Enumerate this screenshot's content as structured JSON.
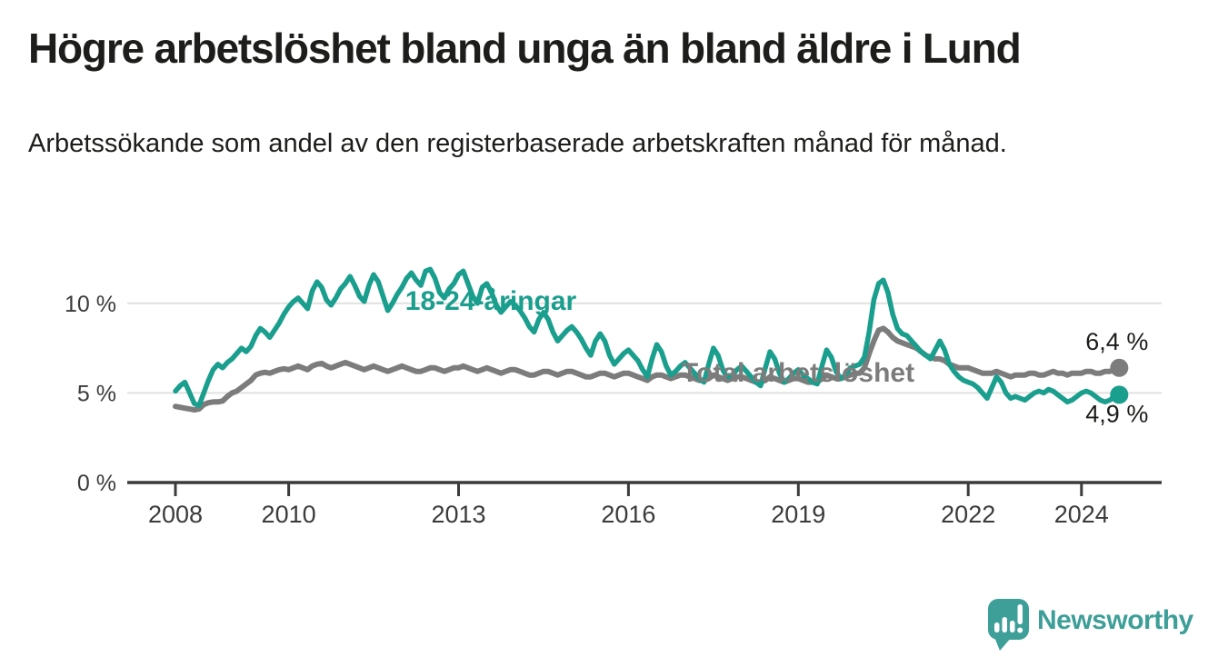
{
  "header": {
    "title": "Högre arbetslöshet bland unga än bland äldre i Lund",
    "subtitle": "Arbetssökande som andel av den registerbaserade arbetskraften månad för månad."
  },
  "chart_data": {
    "type": "line",
    "title": "Högre arbetslöshet bland unga än bland äldre i Lund",
    "subtitle": "Arbetssökande som andel av den registerbaserade arbetskraften månad för månad.",
    "x_unit": "month",
    "x_start_year": 2008,
    "x_end_year_fraction": 2024.67,
    "ylim": [
      0,
      12.5
    ],
    "grid": "horizontal",
    "legend_position": "inline-labels",
    "yticks": [
      {
        "value": 0,
        "label": "0 %"
      },
      {
        "value": 5,
        "label": "5 %"
      },
      {
        "value": 10,
        "label": "10 %"
      }
    ],
    "xticks": [
      {
        "value": 2008,
        "label": "2008"
      },
      {
        "value": 2010,
        "label": "2010"
      },
      {
        "value": 2013,
        "label": "2013"
      },
      {
        "value": 2016,
        "label": "2016"
      },
      {
        "value": 2019,
        "label": "2019"
      },
      {
        "value": 2022,
        "label": "2022"
      },
      {
        "value": 2024,
        "label": "2024"
      }
    ],
    "series": [
      {
        "name": "18-24-åringar",
        "color": "#1a9e8d",
        "end_value": 4.9,
        "end_label": "4,9 %",
        "values": [
          5.1,
          5.4,
          5.6,
          5.0,
          4.4,
          4.3,
          5.0,
          5.7,
          6.3,
          6.6,
          6.4,
          6.7,
          6.9,
          7.2,
          7.5,
          7.3,
          7.6,
          8.2,
          8.6,
          8.4,
          8.1,
          8.5,
          8.9,
          9.4,
          9.8,
          10.1,
          10.3,
          10.0,
          9.7,
          10.7,
          11.2,
          10.9,
          10.2,
          9.9,
          10.3,
          10.8,
          11.1,
          11.5,
          11.0,
          10.4,
          10.1,
          11.0,
          11.6,
          11.2,
          10.4,
          9.6,
          10.0,
          10.5,
          10.9,
          11.4,
          11.7,
          11.3,
          11.0,
          11.8,
          11.9,
          11.4,
          10.6,
          10.3,
          10.8,
          11.1,
          11.6,
          11.8,
          11.1,
          10.4,
          10.0,
          10.9,
          11.1,
          10.6,
          9.9,
          9.5,
          9.8,
          10.1,
          9.9,
          9.6,
          9.2,
          8.7,
          8.4,
          9.1,
          9.5,
          9.1,
          8.4,
          7.9,
          8.2,
          8.5,
          8.7,
          8.4,
          8.0,
          7.5,
          7.1,
          7.9,
          8.3,
          7.9,
          7.1,
          6.6,
          6.9,
          7.2,
          7.4,
          7.1,
          6.8,
          6.3,
          5.9,
          6.9,
          7.7,
          7.3,
          6.5,
          6.0,
          6.2,
          6.5,
          6.7,
          6.4,
          6.1,
          5.8,
          5.6,
          6.6,
          7.5,
          7.1,
          6.3,
          5.8,
          6.0,
          6.3,
          6.5,
          6.2,
          5.9,
          5.6,
          5.4,
          6.4,
          7.3,
          6.9,
          6.1,
          5.6,
          5.8,
          6.1,
          6.3,
          6.0,
          5.8,
          5.6,
          5.5,
          6.5,
          7.4,
          7.0,
          6.2,
          5.8,
          6.0,
          6.4,
          6.5,
          6.6,
          7.0,
          8.4,
          10.2,
          11.1,
          11.3,
          10.6,
          9.4,
          8.6,
          8.3,
          8.2,
          7.9,
          7.6,
          7.3,
          7.1,
          6.9,
          7.4,
          7.9,
          7.4,
          6.6,
          6.2,
          5.9,
          5.7,
          5.6,
          5.5,
          5.3,
          5.0,
          4.7,
          5.3,
          5.9,
          5.6,
          5.0,
          4.7,
          4.8,
          4.7,
          4.6,
          4.8,
          5.0,
          5.1,
          5.0,
          5.2,
          5.1,
          4.9,
          4.7,
          4.5,
          4.6,
          4.8,
          5.0,
          5.1,
          5.0,
          4.8,
          4.6,
          4.5,
          4.6,
          4.8,
          4.9
        ]
      },
      {
        "name": "Total arbetslöshet",
        "color": "#7c7c7c",
        "end_value": 6.4,
        "end_label": "6,4 %",
        "values": [
          4.25,
          4.2,
          4.15,
          4.1,
          4.05,
          4.1,
          4.35,
          4.45,
          4.5,
          4.5,
          4.55,
          4.8,
          5.0,
          5.1,
          5.3,
          5.5,
          5.7,
          6.0,
          6.1,
          6.15,
          6.1,
          6.2,
          6.3,
          6.35,
          6.3,
          6.4,
          6.5,
          6.4,
          6.3,
          6.5,
          6.6,
          6.65,
          6.5,
          6.4,
          6.5,
          6.6,
          6.7,
          6.6,
          6.5,
          6.4,
          6.3,
          6.4,
          6.5,
          6.4,
          6.3,
          6.2,
          6.3,
          6.4,
          6.5,
          6.4,
          6.3,
          6.2,
          6.2,
          6.3,
          6.4,
          6.4,
          6.3,
          6.2,
          6.3,
          6.4,
          6.4,
          6.5,
          6.4,
          6.3,
          6.2,
          6.3,
          6.4,
          6.3,
          6.2,
          6.1,
          6.2,
          6.3,
          6.3,
          6.2,
          6.1,
          6.0,
          6.0,
          6.1,
          6.2,
          6.2,
          6.1,
          6.0,
          6.1,
          6.2,
          6.2,
          6.1,
          6.0,
          5.9,
          5.9,
          6.0,
          6.1,
          6.1,
          6.0,
          5.9,
          6.0,
          6.1,
          6.1,
          6.0,
          5.9,
          5.8,
          5.7,
          5.9,
          6.0,
          6.0,
          5.9,
          5.8,
          5.9,
          6.0,
          6.0,
          5.9,
          5.8,
          5.7,
          5.7,
          5.8,
          6.0,
          5.9,
          5.8,
          5.7,
          5.8,
          5.9,
          5.9,
          5.8,
          5.7,
          5.6,
          5.6,
          5.7,
          5.9,
          5.8,
          5.7,
          5.6,
          5.7,
          5.8,
          5.8,
          5.7,
          5.6,
          5.6,
          5.6,
          5.8,
          6.0,
          5.9,
          5.8,
          5.8,
          5.9,
          6.0,
          6.1,
          6.1,
          6.4,
          7.2,
          7.9,
          8.5,
          8.6,
          8.4,
          8.1,
          7.9,
          7.8,
          7.7,
          7.6,
          7.5,
          7.3,
          7.1,
          7.0,
          6.9,
          6.9,
          6.8,
          6.6,
          6.5,
          6.4,
          6.4,
          6.4,
          6.3,
          6.2,
          6.1,
          6.1,
          6.1,
          6.2,
          6.1,
          6.0,
          5.9,
          6.0,
          6.0,
          6.0,
          6.1,
          6.1,
          6.0,
          6.0,
          6.1,
          6.2,
          6.1,
          6.1,
          6.0,
          6.1,
          6.1,
          6.1,
          6.2,
          6.2,
          6.1,
          6.1,
          6.2,
          6.2,
          6.3,
          6.4
        ]
      }
    ],
    "colors": {
      "youth_line": "#1a9e8d",
      "total_line": "#7c7c7c",
      "gridline": "#e1e1e0",
      "axis": "#3b3b3b",
      "text": "#1d1d1b",
      "brand_teal": "#3d9f98"
    }
  },
  "footer": {
    "brand": "Newsworthy"
  }
}
